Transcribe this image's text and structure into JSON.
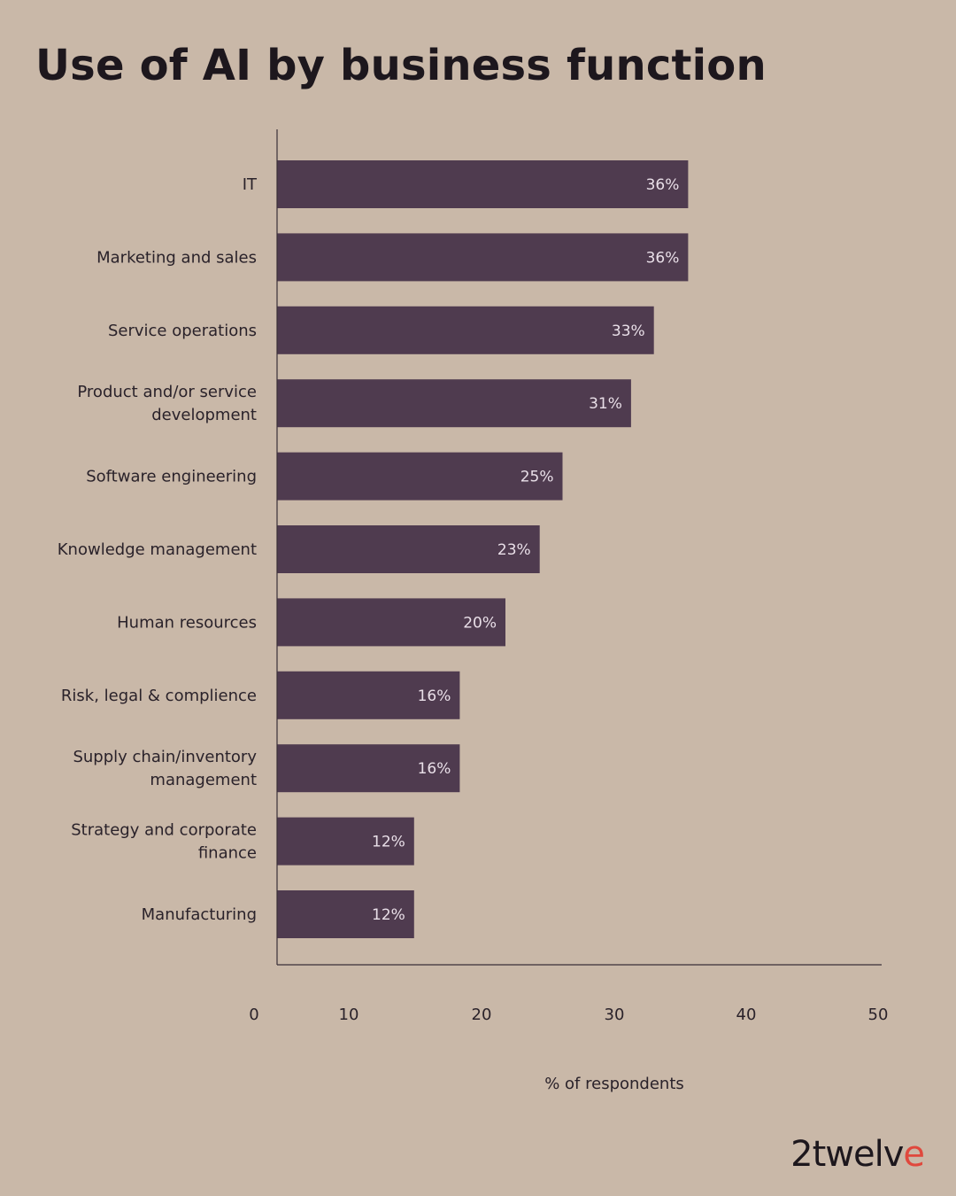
{
  "chart_data": {
    "type": "bar",
    "orientation": "horizontal",
    "title": "Use of AI by business function",
    "xlabel": "% of respondents",
    "ylabel": "",
    "xlim": [
      0,
      50
    ],
    "xticks": [
      0,
      10,
      20,
      30,
      40,
      50
    ],
    "grid": false,
    "categories": [
      [
        "IT"
      ],
      [
        "Marketing and sales"
      ],
      [
        "Service operations"
      ],
      [
        "Product and/or service",
        "development"
      ],
      [
        "Software engineering"
      ],
      [
        "Knowledge management"
      ],
      [
        "Human resources"
      ],
      [
        "Risk, legal & complience"
      ],
      [
        "Supply chain/inventory",
        "management"
      ],
      [
        "Strategy and corporate",
        "finance"
      ],
      [
        "Manufacturing"
      ]
    ],
    "values": [
      36,
      36,
      33,
      31,
      25,
      23,
      20,
      16,
      16,
      12,
      12
    ],
    "value_labels": [
      "36%",
      "36%",
      "33%",
      "31%",
      "25%",
      "23%",
      "20%",
      "16%",
      "16%",
      "12%",
      "12%"
    ],
    "bar_color": "#4f3b4f",
    "background_color": "#c9b8a8"
  },
  "brand": {
    "logo_main": "2twelv",
    "logo_accent": "e",
    "accent_color": "#e0483d"
  }
}
